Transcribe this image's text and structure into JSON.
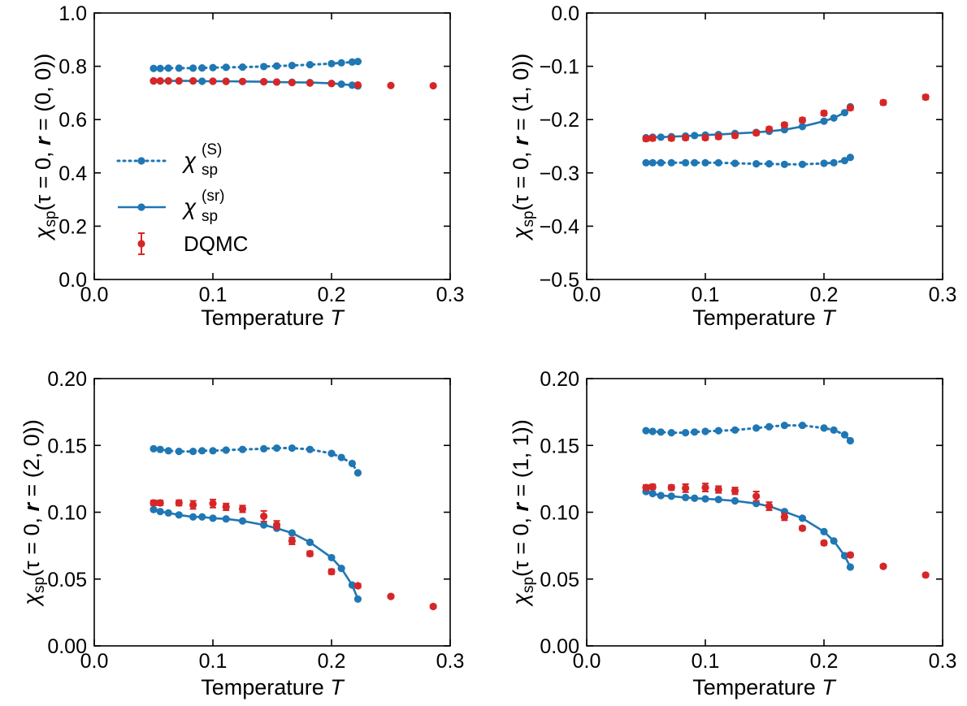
{
  "colors": {
    "model": "#1f77b4",
    "dqmc": "#d62728",
    "axis": "#000000"
  },
  "legend": {
    "placement": "center-left of top-left panel",
    "entries": [
      {
        "key": "s",
        "symbol": "χ",
        "sub": "sp",
        "sup": "(S)",
        "style": "dotted"
      },
      {
        "key": "sr",
        "symbol": "χ",
        "sub": "sp",
        "sup": "(sr)",
        "style": "solid"
      },
      {
        "key": "dqmc",
        "label": "DQMC",
        "style": "errorbar"
      }
    ]
  },
  "chart_data": [
    {
      "type": "line",
      "xlabel": "Temperature",
      "xlabel_var": "T",
      "ylabel_parts": [
        "χ",
        "sp",
        "(τ = 0, ",
        "r",
        " = (0, 0))"
      ],
      "xlim": [
        0.0,
        0.3
      ],
      "ylim": [
        0.0,
        1.0
      ],
      "xticks": [
        0.0,
        0.1,
        0.2,
        0.3
      ],
      "xtick_labels": [
        "0.0",
        "0.1",
        "0.2",
        "0.3"
      ],
      "yticks": [
        0.0,
        0.2,
        0.4,
        0.6,
        0.8,
        1.0
      ],
      "ytick_labels": [
        "0.0",
        "0.2",
        "0.4",
        "0.6",
        "0.8",
        "1.0"
      ],
      "grid": false,
      "series": [
        {
          "key": "s",
          "style": "dotted",
          "x": [
            0.05,
            0.0556,
            0.0625,
            0.0714,
            0.0833,
            0.0909,
            0.1,
            0.1111,
            0.125,
            0.1429,
            0.1538,
            0.1667,
            0.1818,
            0.2,
            0.2083,
            0.2174,
            0.2222
          ],
          "y": [
            0.792,
            0.792,
            0.793,
            0.793,
            0.793,
            0.794,
            0.795,
            0.796,
            0.797,
            0.799,
            0.801,
            0.803,
            0.806,
            0.81,
            0.813,
            0.816,
            0.818
          ]
        },
        {
          "key": "sr",
          "style": "solid",
          "x": [
            0.05,
            0.0556,
            0.0625,
            0.0714,
            0.0833,
            0.0909,
            0.1,
            0.1111,
            0.125,
            0.1429,
            0.1538,
            0.1667,
            0.1818,
            0.2,
            0.2083,
            0.2174,
            0.2222
          ],
          "y": [
            0.745,
            0.745,
            0.745,
            0.745,
            0.745,
            0.744,
            0.744,
            0.744,
            0.743,
            0.742,
            0.741,
            0.74,
            0.739,
            0.736,
            0.733,
            0.729,
            0.726
          ]
        },
        {
          "key": "dqmc",
          "style": "errorbar",
          "x": [
            0.05,
            0.0556,
            0.0625,
            0.0714,
            0.0833,
            0.1,
            0.1111,
            0.125,
            0.1429,
            0.1538,
            0.1667,
            0.1818,
            0.2,
            0.2222,
            0.25,
            0.2857
          ],
          "y": [
            0.745,
            0.745,
            0.745,
            0.745,
            0.745,
            0.744,
            0.743,
            0.743,
            0.742,
            0.741,
            0.739,
            0.737,
            0.735,
            0.73,
            0.728,
            0.727
          ],
          "err": [
            0.003,
            0.003,
            0.003,
            0.003,
            0.003,
            0.003,
            0.003,
            0.003,
            0.003,
            0.003,
            0.003,
            0.003,
            0.003,
            0.003,
            0.003,
            0.003
          ]
        }
      ]
    },
    {
      "type": "line",
      "xlabel": "Temperature",
      "xlabel_var": "T",
      "ylabel_parts": [
        "χ",
        "sp",
        "(τ = 0, ",
        "r",
        " = (1, 0))"
      ],
      "xlim": [
        0.0,
        0.3
      ],
      "ylim": [
        -0.5,
        0.0
      ],
      "xticks": [
        0.0,
        0.1,
        0.2,
        0.3
      ],
      "xtick_labels": [
        "0.0",
        "0.1",
        "0.2",
        "0.3"
      ],
      "yticks": [
        -0.5,
        -0.4,
        -0.3,
        -0.2,
        -0.1,
        0.0
      ],
      "ytick_labels": [
        "−0.5",
        "−0.4",
        "−0.3",
        "−0.2",
        "−0.1",
        "0.0"
      ],
      "grid": false,
      "series": [
        {
          "key": "s",
          "style": "dotted",
          "x": [
            0.05,
            0.0556,
            0.0625,
            0.0714,
            0.0833,
            0.0909,
            0.1,
            0.1111,
            0.125,
            0.1429,
            0.1538,
            0.1667,
            0.1818,
            0.2,
            0.2083,
            0.2174,
            0.2222
          ],
          "y": [
            -0.281,
            -0.281,
            -0.281,
            -0.281,
            -0.281,
            -0.281,
            -0.281,
            -0.281,
            -0.282,
            -0.283,
            -0.283,
            -0.284,
            -0.284,
            -0.282,
            -0.281,
            -0.277,
            -0.271
          ]
        },
        {
          "key": "sr",
          "style": "solid",
          "x": [
            0.05,
            0.0556,
            0.0625,
            0.0714,
            0.0833,
            0.0909,
            0.1,
            0.1111,
            0.125,
            0.1429,
            0.1538,
            0.1667,
            0.1818,
            0.2,
            0.2083,
            0.2174,
            0.2222
          ],
          "y": [
            -0.234,
            -0.233,
            -0.233,
            -0.232,
            -0.231,
            -0.23,
            -0.229,
            -0.228,
            -0.226,
            -0.224,
            -0.222,
            -0.219,
            -0.213,
            -0.203,
            -0.197,
            -0.187,
            -0.176
          ]
        },
        {
          "key": "dqmc",
          "style": "errorbar",
          "x": [
            0.05,
            0.0556,
            0.0714,
            0.0833,
            0.1,
            0.1111,
            0.125,
            0.1429,
            0.1538,
            0.1667,
            0.1818,
            0.2,
            0.2222,
            0.25,
            0.2857
          ],
          "y": [
            -0.236,
            -0.235,
            -0.235,
            -0.234,
            -0.234,
            -0.232,
            -0.23,
            -0.225,
            -0.218,
            -0.21,
            -0.201,
            -0.188,
            -0.178,
            -0.168,
            -0.158
          ],
          "err": [
            0.004,
            0.004,
            0.004,
            0.004,
            0.004,
            0.004,
            0.004,
            0.004,
            0.004,
            0.004,
            0.004,
            0.004,
            0.004,
            0.004,
            0.004
          ]
        }
      ]
    },
    {
      "type": "line",
      "xlabel": "Temperature",
      "xlabel_var": "T",
      "ylabel_parts": [
        "χ",
        "sp",
        "(τ = 0, ",
        "r",
        " = (2, 0))"
      ],
      "xlim": [
        0.0,
        0.3
      ],
      "ylim": [
        0.0,
        0.2
      ],
      "xticks": [
        0.0,
        0.1,
        0.2,
        0.3
      ],
      "xtick_labels": [
        "0.0",
        "0.1",
        "0.2",
        "0.3"
      ],
      "yticks": [
        0.0,
        0.05,
        0.1,
        0.15,
        0.2
      ],
      "ytick_labels": [
        "0.00",
        "0.05",
        "0.10",
        "0.15",
        "0.20"
      ],
      "grid": false,
      "series": [
        {
          "key": "s",
          "style": "dotted",
          "x": [
            0.05,
            0.0556,
            0.0625,
            0.0714,
            0.0833,
            0.0909,
            0.1,
            0.1111,
            0.125,
            0.1429,
            0.1538,
            0.1667,
            0.1818,
            0.2,
            0.2083,
            0.2174,
            0.2222
          ],
          "y": [
            0.1475,
            0.147,
            0.146,
            0.1455,
            0.1455,
            0.146,
            0.146,
            0.1465,
            0.147,
            0.1475,
            0.148,
            0.148,
            0.147,
            0.144,
            0.141,
            0.1365,
            0.1295
          ]
        },
        {
          "key": "sr",
          "style": "solid",
          "x": [
            0.05,
            0.0556,
            0.0625,
            0.0714,
            0.0833,
            0.0909,
            0.1,
            0.1111,
            0.125,
            0.1429,
            0.1538,
            0.1667,
            0.1818,
            0.2,
            0.2083,
            0.2174,
            0.2222
          ],
          "y": [
            0.102,
            0.1005,
            0.0995,
            0.098,
            0.0965,
            0.0965,
            0.0955,
            0.095,
            0.0935,
            0.0905,
            0.088,
            0.0845,
            0.0775,
            0.066,
            0.058,
            0.0455,
            0.035
          ]
        },
        {
          "key": "dqmc",
          "style": "errorbar",
          "x": [
            0.05,
            0.0556,
            0.0714,
            0.0833,
            0.1,
            0.1111,
            0.125,
            0.1429,
            0.1538,
            0.1667,
            0.1818,
            0.2,
            0.2222,
            0.25,
            0.2857
          ],
          "y": [
            0.107,
            0.107,
            0.107,
            0.1055,
            0.1065,
            0.104,
            0.1025,
            0.097,
            0.0905,
            0.0785,
            0.069,
            0.0555,
            0.045,
            0.037,
            0.0295
          ],
          "err": [
            0.0018,
            0.0018,
            0.002,
            0.003,
            0.003,
            0.0025,
            0.0025,
            0.004,
            0.003,
            0.0025,
            0.0018,
            0.0018,
            0.0015,
            0.0012,
            0.0012
          ]
        }
      ]
    },
    {
      "type": "line",
      "xlabel": "Temperature",
      "xlabel_var": "T",
      "ylabel_parts": [
        "χ",
        "sp",
        "(τ = 0, ",
        "r",
        " = (1, 1))"
      ],
      "xlim": [
        0.0,
        0.3
      ],
      "ylim": [
        0.0,
        0.2
      ],
      "xticks": [
        0.0,
        0.1,
        0.2,
        0.3
      ],
      "xtick_labels": [
        "0.0",
        "0.1",
        "0.2",
        "0.3"
      ],
      "yticks": [
        0.0,
        0.05,
        0.1,
        0.15,
        0.2
      ],
      "ytick_labels": [
        "0.00",
        "0.05",
        "0.10",
        "0.15",
        "0.20"
      ],
      "grid": false,
      "series": [
        {
          "key": "s",
          "style": "dotted",
          "x": [
            0.05,
            0.0556,
            0.0625,
            0.0714,
            0.0833,
            0.0909,
            0.1,
            0.1111,
            0.125,
            0.1429,
            0.1538,
            0.1667,
            0.1818,
            0.2,
            0.2083,
            0.2174,
            0.2222
          ],
          "y": [
            0.161,
            0.1605,
            0.16,
            0.1595,
            0.1595,
            0.16,
            0.1605,
            0.161,
            0.1615,
            0.163,
            0.164,
            0.165,
            0.165,
            0.163,
            0.1615,
            0.158,
            0.1535
          ]
        },
        {
          "key": "sr",
          "style": "solid",
          "x": [
            0.05,
            0.0556,
            0.0625,
            0.0714,
            0.0833,
            0.0909,
            0.1,
            0.1111,
            0.125,
            0.1429,
            0.1538,
            0.1667,
            0.1818,
            0.2,
            0.2083,
            0.2174,
            0.2222
          ],
          "y": [
            0.1155,
            0.114,
            0.1125,
            0.112,
            0.111,
            0.1105,
            0.11,
            0.1095,
            0.1085,
            0.1065,
            0.1045,
            0.1005,
            0.0955,
            0.0855,
            0.0785,
            0.0675,
            0.059
          ]
        },
        {
          "key": "dqmc",
          "style": "errorbar",
          "x": [
            0.05,
            0.0556,
            0.0714,
            0.0833,
            0.1,
            0.1111,
            0.125,
            0.1429,
            0.1538,
            0.1667,
            0.1818,
            0.2,
            0.2222,
            0.25,
            0.2857
          ],
          "y": [
            0.1185,
            0.119,
            0.1185,
            0.118,
            0.1185,
            0.117,
            0.116,
            0.112,
            0.1045,
            0.0965,
            0.088,
            0.077,
            0.068,
            0.0595,
            0.053
          ],
          "err": [
            0.0018,
            0.0018,
            0.0018,
            0.003,
            0.003,
            0.0025,
            0.0025,
            0.0035,
            0.003,
            0.0025,
            0.0015,
            0.0015,
            0.0015,
            0.0012,
            0.0012
          ]
        }
      ]
    }
  ]
}
